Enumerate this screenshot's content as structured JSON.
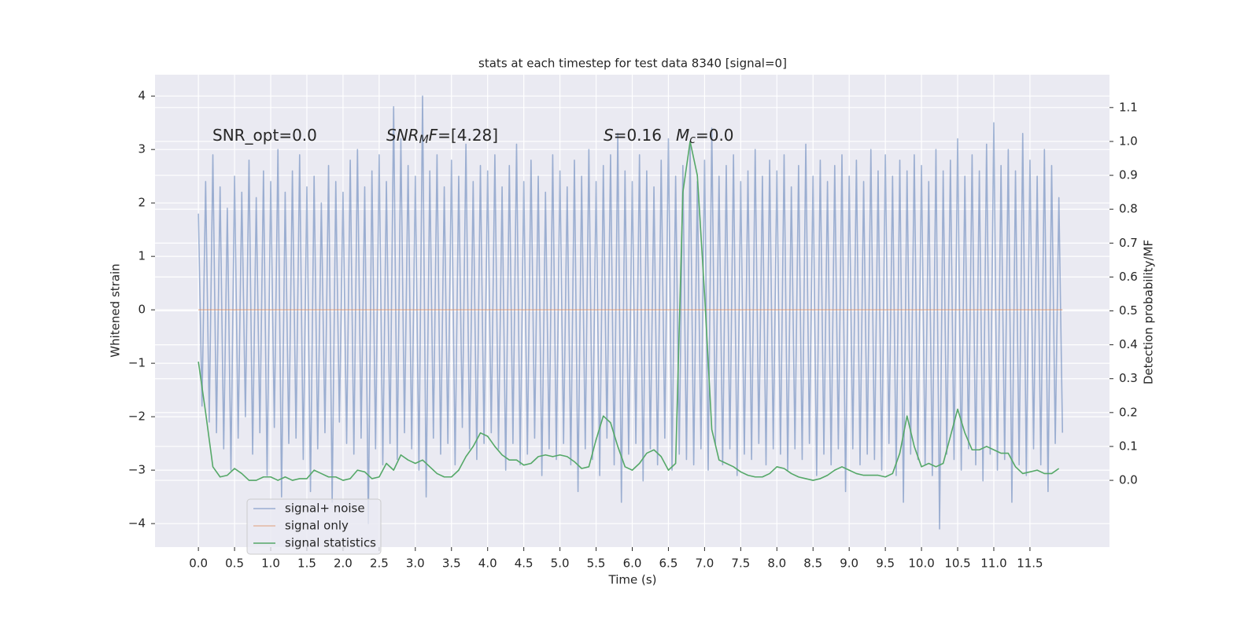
{
  "chart_data": {
    "type": "line",
    "title": "stats at each timestep for test data 8340 [signal=0]",
    "x_label": "Time (s)",
    "y_label": "Whitened strain",
    "y2_label": "Detection probability/MF",
    "annotations": [
      {
        "parts": [
          {
            "text": "SNR_opt=0.0"
          }
        ]
      },
      {
        "parts": [
          {
            "text": "SNR",
            "style": "italic"
          },
          {
            "text": "M",
            "style": "italic-sub"
          },
          {
            "text": "F",
            "style": "italic"
          },
          {
            "text": "=[4.28]"
          }
        ]
      },
      {
        "parts": [
          {
            "text": "S",
            "style": "italic"
          },
          {
            "text": "=0.16"
          }
        ]
      },
      {
        "parts": [
          {
            "text": "M",
            "style": "italic"
          },
          {
            "text": "c",
            "style": "italic-sub"
          },
          {
            "text": "=0.0"
          }
        ]
      }
    ],
    "xlim": [
      -0.6,
      12.6
    ],
    "ylim": [
      -4.44,
      4.4
    ],
    "y2lim": [
      -0.197,
      1.197
    ],
    "xticks": [
      {
        "value": 0,
        "label": "0.0"
      },
      {
        "value": 0.5,
        "label": "0.5"
      },
      {
        "value": 1,
        "label": "1.0"
      },
      {
        "value": 1.5,
        "label": "1.5"
      },
      {
        "value": 2,
        "label": "2.0"
      },
      {
        "value": 2.5,
        "label": "2.5"
      },
      {
        "value": 3,
        "label": "3.0"
      },
      {
        "value": 3.5,
        "label": "3.5"
      },
      {
        "value": 4,
        "label": "4.0"
      },
      {
        "value": 4.5,
        "label": "4.5"
      },
      {
        "value": 5,
        "label": "5.0"
      },
      {
        "value": 5.5,
        "label": "5.5"
      },
      {
        "value": 6,
        "label": "6.0"
      },
      {
        "value": 6.5,
        "label": "6.5"
      },
      {
        "value": 7,
        "label": "7.0"
      },
      {
        "value": 7.5,
        "label": "7.5"
      },
      {
        "value": 8,
        "label": "8.0"
      },
      {
        "value": 8.5,
        "label": "8.5"
      },
      {
        "value": 9,
        "label": "9.0"
      },
      {
        "value": 9.5,
        "label": "9.5"
      },
      {
        "value": 10,
        "label": "10.0"
      },
      {
        "value": 10.5,
        "label": "10.5"
      },
      {
        "value": 11,
        "label": "11.0"
      },
      {
        "value": 11.5,
        "label": "11.5"
      }
    ],
    "yticks": [
      {
        "value": -4,
        "label": "−4"
      },
      {
        "value": -3,
        "label": "−3"
      },
      {
        "value": -2,
        "label": "−2"
      },
      {
        "value": -1,
        "label": "−1"
      },
      0,
      1,
      2,
      3,
      4
    ],
    "y2ticks": [
      {
        "value": 0,
        "label": "0.0"
      },
      {
        "value": 0.1,
        "label": "0.1"
      },
      {
        "value": 0.2,
        "label": "0.2"
      },
      {
        "value": 0.3,
        "label": "0.3"
      },
      {
        "value": 0.4,
        "label": "0.4"
      },
      {
        "value": 0.5,
        "label": "0.5"
      },
      {
        "value": 0.6,
        "label": "0.6"
      },
      {
        "value": 0.7,
        "label": "0.7"
      },
      {
        "value": 0.8,
        "label": "0.8"
      },
      {
        "value": 0.9,
        "label": "0.9"
      },
      {
        "value": 1,
        "label": "1.0"
      },
      {
        "value": 1.1,
        "label": "1.1"
      }
    ],
    "grid": true,
    "legend": "lower left",
    "series": [
      {
        "name": "signal+ noise",
        "color": "#4c72b0",
        "opacity": 0.5,
        "axis": "y",
        "x": [
          0,
          0.05,
          0.1,
          0.15,
          0.2,
          0.25,
          0.3,
          0.35,
          0.4,
          0.45,
          0.5,
          0.55,
          0.6,
          0.65,
          0.7,
          0.75,
          0.8,
          0.85,
          0.9,
          0.95,
          1,
          1.05,
          1.1,
          1.15,
          1.2,
          1.25,
          1.3,
          1.35,
          1.4,
          1.45,
          1.5,
          1.55,
          1.6,
          1.65,
          1.7,
          1.75,
          1.8,
          1.85,
          1.9,
          1.95,
          2,
          2.05,
          2.1,
          2.15,
          2.2,
          2.25,
          2.3,
          2.35,
          2.4,
          2.45,
          2.5,
          2.55,
          2.6,
          2.65,
          2.7,
          2.75,
          2.8,
          2.85,
          2.9,
          2.95,
          3,
          3.05,
          3.1,
          3.15,
          3.2,
          3.25,
          3.3,
          3.35,
          3.4,
          3.45,
          3.5,
          3.55,
          3.6,
          3.65,
          3.7,
          3.75,
          3.8,
          3.85,
          3.9,
          3.95,
          4,
          4.05,
          4.1,
          4.15,
          4.2,
          4.25,
          4.3,
          4.35,
          4.4,
          4.45,
          4.5,
          4.55,
          4.6,
          4.65,
          4.7,
          4.75,
          4.8,
          4.85,
          4.9,
          4.95,
          5,
          5.05,
          5.1,
          5.15,
          5.2,
          5.25,
          5.3,
          5.35,
          5.4,
          5.45,
          5.5,
          5.55,
          5.6,
          5.65,
          5.7,
          5.75,
          5.8,
          5.85,
          5.9,
          5.95,
          6,
          6.05,
          6.1,
          6.15,
          6.2,
          6.25,
          6.3,
          6.35,
          6.4,
          6.45,
          6.5,
          6.55,
          6.6,
          6.65,
          6.7,
          6.75,
          6.8,
          6.85,
          6.9,
          6.95,
          7,
          7.05,
          7.1,
          7.15,
          7.2,
          7.25,
          7.3,
          7.35,
          7.4,
          7.45,
          7.5,
          7.55,
          7.6,
          7.65,
          7.7,
          7.75,
          7.8,
          7.85,
          7.9,
          7.95,
          8,
          8.05,
          8.1,
          8.15,
          8.2,
          8.25,
          8.3,
          8.35,
          8.4,
          8.45,
          8.5,
          8.55,
          8.6,
          8.65,
          8.7,
          8.75,
          8.8,
          8.85,
          8.9,
          8.95,
          9,
          9.05,
          9.1,
          9.15,
          9.2,
          9.25,
          9.3,
          9.35,
          9.4,
          9.45,
          9.5,
          9.55,
          9.6,
          9.65,
          9.7,
          9.75,
          9.8,
          9.85,
          9.9,
          9.95,
          10,
          10.05,
          10.1,
          10.15,
          10.2,
          10.25,
          10.3,
          10.35,
          10.4,
          10.45,
          10.5,
          10.55,
          10.6,
          10.65,
          10.7,
          10.75,
          10.8,
          10.85,
          10.9,
          10.95,
          11,
          11.05,
          11.1,
          11.15,
          11.2,
          11.25,
          11.3,
          11.35,
          11.4,
          11.45,
          11.5,
          11.55,
          11.6,
          11.65,
          11.7,
          11.75,
          11.8,
          11.85,
          11.9,
          11.95
        ],
        "values": [
          1.8,
          -1.8,
          2.4,
          -2.1,
          2.9,
          -2.3,
          2.3,
          -2.6,
          1.9,
          -3.0,
          2.5,
          -2.4,
          2.2,
          -2.0,
          2.8,
          -2.7,
          2.1,
          -2.3,
          2.6,
          -3.1,
          2.4,
          -2.2,
          3.0,
          -3.5,
          2.2,
          -2.5,
          2.6,
          -2.4,
          2.9,
          -2.8,
          2.3,
          -3.4,
          2.5,
          -2.6,
          2.0,
          -2.3,
          2.7,
          -3.6,
          2.4,
          -2.1,
          2.2,
          -2.5,
          2.8,
          -2.7,
          3.0,
          -2.4,
          2.3,
          -4.0,
          2.6,
          -2.6,
          2.9,
          -2.9,
          2.4,
          -2.5,
          3.8,
          -2.8,
          3.2,
          -2.3,
          2.7,
          -2.6,
          2.5,
          -3.0,
          4.0,
          -3.5,
          2.6,
          -2.4,
          2.9,
          -2.7,
          2.3,
          -2.5,
          2.8,
          -2.9,
          2.5,
          -2.2,
          3.1,
          -2.6,
          2.4,
          -2.8,
          2.7,
          -2.5,
          2.6,
          -2.3,
          2.9,
          -2.6,
          2.3,
          -3.0,
          2.7,
          -2.5,
          3.1,
          -2.9,
          2.4,
          -2.7,
          2.8,
          -2.4,
          2.5,
          -3.1,
          2.2,
          -2.6,
          2.9,
          -2.8,
          2.6,
          -2.5,
          2.3,
          -2.9,
          2.8,
          -3.4,
          2.5,
          -2.6,
          3.0,
          -2.8,
          2.4,
          -3.1,
          2.7,
          -2.4,
          2.9,
          -2.9,
          3.3,
          -3.6,
          2.6,
          -2.7,
          2.4,
          -2.5,
          2.9,
          -3.2,
          2.6,
          -2.6,
          2.3,
          -2.9,
          2.8,
          -2.4,
          3.2,
          -3.0,
          2.5,
          -2.7,
          2.7,
          -2.8,
          3.1,
          -2.9,
          2.4,
          -2.6,
          2.8,
          -3.0,
          3.4,
          -2.5,
          2.5,
          -2.9,
          2.7,
          -2.6,
          2.9,
          -3.1,
          2.4,
          -2.7,
          2.6,
          -2.8,
          3.0,
          -2.5,
          2.5,
          -2.9,
          2.8,
          -2.6,
          2.6,
          -2.7,
          2.9,
          -3.0,
          2.3,
          -2.6,
          2.7,
          -2.8,
          3.1,
          -2.5,
          2.5,
          -3.1,
          2.8,
          -2.7,
          2.4,
          -2.9,
          2.7,
          -2.6,
          2.9,
          -3.4,
          2.5,
          -2.6,
          2.8,
          -2.9,
          2.4,
          -2.7,
          3.0,
          -2.8,
          2.6,
          -3.0,
          2.9,
          -2.5,
          2.5,
          -3.1,
          2.8,
          -3.6,
          2.6,
          -2.7,
          2.9,
          -2.8,
          2.7,
          -2.9,
          2.4,
          -3.1,
          3.0,
          -4.1,
          2.6,
          -2.7,
          2.8,
          -2.8,
          3.2,
          -3.0,
          2.5,
          -2.6,
          2.9,
          -2.9,
          2.6,
          -3.2,
          3.1,
          -2.7,
          3.5,
          -3.0,
          2.7,
          -2.8,
          3.0,
          -3.6,
          2.6,
          -2.9,
          3.3,
          -3.1,
          2.8,
          -2.6,
          2.5,
          -2.9,
          3.0,
          -3.4,
          2.7,
          -2.5,
          2.1,
          -2.3
        ]
      },
      {
        "name": "signal only",
        "color": "#dd8452",
        "opacity": 0.5,
        "axis": "y",
        "x": [
          0,
          11.95
        ],
        "values": [
          0,
          0
        ]
      },
      {
        "name": "signal statistics",
        "color": "#55a868",
        "opacity": 1,
        "axis": "y2",
        "x": [
          0,
          0.1,
          0.2,
          0.3,
          0.4,
          0.5,
          0.6,
          0.7,
          0.8,
          0.9,
          1,
          1.1,
          1.2,
          1.3,
          1.4,
          1.5,
          1.6,
          1.7,
          1.8,
          1.9,
          2,
          2.1,
          2.2,
          2.3,
          2.4,
          2.5,
          2.6,
          2.7,
          2.8,
          2.9,
          3,
          3.1,
          3.2,
          3.3,
          3.4,
          3.5,
          3.6,
          3.7,
          3.8,
          3.9,
          4,
          4.1,
          4.2,
          4.3,
          4.4,
          4.5,
          4.6,
          4.7,
          4.8,
          4.9,
          5,
          5.1,
          5.2,
          5.3,
          5.4,
          5.5,
          5.6,
          5.7,
          5.8,
          5.9,
          6,
          6.1,
          6.2,
          6.3,
          6.4,
          6.5,
          6.6,
          6.7,
          6.8,
          6.9,
          7,
          7.1,
          7.2,
          7.3,
          7.4,
          7.5,
          7.6,
          7.7,
          7.8,
          7.9,
          8,
          8.1,
          8.2,
          8.3,
          8.4,
          8.5,
          8.6,
          8.7,
          8.8,
          8.9,
          9,
          9.1,
          9.2,
          9.3,
          9.4,
          9.5,
          9.6,
          9.7,
          9.8,
          9.9,
          10,
          10.1,
          10.2,
          10.3,
          10.4,
          10.5,
          10.6,
          10.7,
          10.8,
          10.9,
          11,
          11.1,
          11.2,
          11.3,
          11.4,
          11.5,
          11.6,
          11.7,
          11.8,
          11.9
        ],
        "values": [
          0.35,
          0.2,
          0.04,
          0.01,
          0.015,
          0.035,
          0.02,
          0.0,
          0.0,
          0.01,
          0.01,
          0.0,
          0.01,
          0.0,
          0.005,
          0.005,
          0.03,
          0.02,
          0.01,
          0.01,
          0.0,
          0.005,
          0.03,
          0.025,
          0.005,
          0.01,
          0.05,
          0.03,
          0.075,
          0.06,
          0.05,
          0.06,
          0.04,
          0.02,
          0.01,
          0.01,
          0.03,
          0.07,
          0.1,
          0.14,
          0.13,
          0.1,
          0.075,
          0.06,
          0.06,
          0.045,
          0.05,
          0.07,
          0.075,
          0.07,
          0.075,
          0.07,
          0.055,
          0.035,
          0.04,
          0.12,
          0.19,
          0.17,
          0.1,
          0.04,
          0.03,
          0.05,
          0.08,
          0.09,
          0.07,
          0.03,
          0.05,
          0.85,
          1.0,
          0.9,
          0.55,
          0.15,
          0.06,
          0.05,
          0.04,
          0.025,
          0.015,
          0.01,
          0.01,
          0.02,
          0.04,
          0.035,
          0.02,
          0.01,
          0.005,
          0.0,
          0.005,
          0.015,
          0.03,
          0.04,
          0.03,
          0.02,
          0.015,
          0.015,
          0.015,
          0.01,
          0.02,
          0.08,
          0.19,
          0.1,
          0.04,
          0.05,
          0.04,
          0.05,
          0.13,
          0.21,
          0.14,
          0.09,
          0.09,
          0.1,
          0.09,
          0.08,
          0.08,
          0.04,
          0.02,
          0.025,
          0.03,
          0.02,
          0.02,
          0.035
        ]
      }
    ]
  }
}
